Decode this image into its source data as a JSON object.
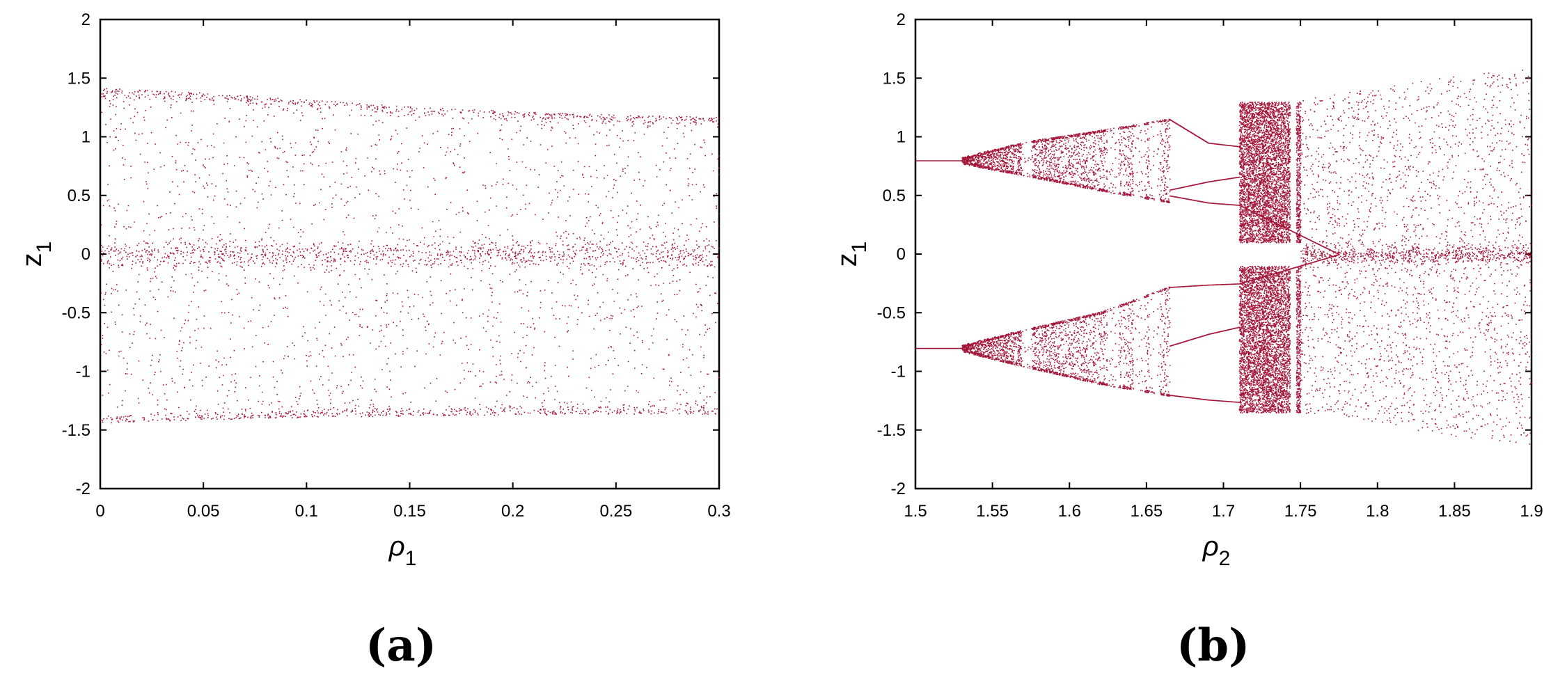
{
  "colors": {
    "points": "#a3163a",
    "axis": "#000000",
    "background": "#ffffff"
  },
  "panels": [
    {
      "label": "(a)"
    },
    {
      "label": "(b)"
    }
  ],
  "chart_data": [
    {
      "type": "scatter",
      "title": "",
      "xlabel": {
        "symbol": "ρ",
        "subscript": "1"
      },
      "ylabel": {
        "symbol": "z",
        "subscript": "1"
      },
      "xlim": [
        0,
        0.3
      ],
      "ylim": [
        -2,
        2
      ],
      "xticks": [
        0,
        0.05,
        0.1,
        0.15,
        0.2,
        0.25,
        0.3
      ],
      "xtick_labels": [
        "0",
        "0.05",
        "0.1",
        "0.15",
        "0.2",
        "0.25",
        "0.3"
      ],
      "yticks": [
        -2,
        -1.5,
        -1,
        -0.5,
        0,
        0.5,
        1,
        1.5,
        2
      ],
      "ytick_labels": [
        "-2",
        "-1.5",
        "-1",
        "-0.5",
        "0",
        "0.5",
        "1",
        "1.5",
        "2"
      ],
      "grid": false,
      "description_of_points": "chaotic band for all ρ1",
      "envelope": {
        "x": [
          0,
          0.05,
          0.1,
          0.15,
          0.2,
          0.25,
          0.3
        ],
        "upper": [
          1.42,
          1.38,
          1.32,
          1.26,
          1.22,
          1.19,
          1.17
        ],
        "lower": [
          -1.44,
          -1.41,
          -1.39,
          -1.38,
          -1.37,
          -1.36,
          -1.36
        ]
      },
      "dense_center": 0
    },
    {
      "type": "scatter",
      "title": "",
      "xlabel": {
        "symbol": "ρ",
        "subscript": "2"
      },
      "ylabel": {
        "symbol": "z",
        "subscript": "1"
      },
      "xlim": [
        1.5,
        1.9
      ],
      "ylim": [
        -2,
        2
      ],
      "xticks": [
        1.5,
        1.55,
        1.6,
        1.65,
        1.7,
        1.75,
        1.8,
        1.85,
        1.9
      ],
      "xtick_labels": [
        "1.5",
        "1.55",
        "1.6",
        "1.65",
        "1.7",
        "1.75",
        "1.8",
        "1.85",
        "1.9"
      ],
      "yticks": [
        -2,
        -1.5,
        -1,
        -0.5,
        0,
        0.5,
        1,
        1.5,
        2
      ],
      "ytick_labels": [
        "-2",
        "-1.5",
        "-1",
        "-0.5",
        "0",
        "0.5",
        "1",
        "1.5",
        "2"
      ],
      "grid": false,
      "branches": [
        {
          "sign": 1,
          "fixed_x": [
            1.5,
            1.53
          ],
          "fixed_y": 0.8,
          "chaos_band_x": [
            1.53,
            1.665
          ],
          "chaos_band_upper": [
            [
              1.53,
              0.82
            ],
            [
              1.57,
              0.95
            ],
            [
              1.62,
              1.05
            ],
            [
              1.665,
              1.15
            ]
          ],
          "chaos_band_lower": [
            [
              1.53,
              0.78
            ],
            [
              1.57,
              0.68
            ],
            [
              1.62,
              0.55
            ],
            [
              1.665,
              0.45
            ]
          ],
          "period2_x": [
            1.665,
            1.71
          ],
          "period2_upper": [
            [
              1.665,
              1.15
            ],
            [
              1.69,
              0.95
            ],
            [
              1.71,
              0.92
            ]
          ],
          "period2_mid": [
            [
              1.665,
              0.55
            ],
            [
              1.69,
              0.62
            ],
            [
              1.71,
              0.66
            ]
          ],
          "period2_lower": [
            [
              1.665,
              0.5
            ],
            [
              1.69,
              0.44
            ],
            [
              1.71,
              0.42
            ]
          ],
          "chaos2_x": [
            1.71,
            1.75
          ],
          "chaos2_upper": 1.3,
          "chaos2_lower": 0.1
        },
        {
          "sign": -1,
          "fixed_x": [
            1.5,
            1.53
          ],
          "fixed_y": -0.8,
          "chaos_band_x": [
            1.53,
            1.665
          ],
          "chaos_band_upper": [
            [
              1.53,
              -0.78
            ],
            [
              1.57,
              -0.65
            ],
            [
              1.62,
              -0.5
            ],
            [
              1.665,
              -0.28
            ]
          ],
          "chaos_band_lower": [
            [
              1.53,
              -0.82
            ],
            [
              1.57,
              -0.95
            ],
            [
              1.62,
              -1.1
            ],
            [
              1.665,
              -1.2
            ]
          ],
          "period2_x": [
            1.665,
            1.71
          ],
          "period2_upper": [
            [
              1.665,
              -0.28
            ],
            [
              1.69,
              -0.26
            ],
            [
              1.71,
              -0.25
            ]
          ],
          "period2_mid": [
            [
              1.665,
              -0.78
            ],
            [
              1.69,
              -0.68
            ],
            [
              1.71,
              -0.62
            ]
          ],
          "period2_lower": [
            [
              1.665,
              -1.2
            ],
            [
              1.69,
              -1.24
            ],
            [
              1.71,
              -1.26
            ]
          ],
          "chaos2_x": [
            1.71,
            1.75
          ],
          "chaos2_upper": -0.1,
          "chaos2_lower": -1.35
        }
      ],
      "final_chaos": {
        "x": [
          1.75,
          1.8,
          1.85,
          1.9
        ],
        "upper": [
          1.32,
          1.42,
          1.52,
          1.6
        ],
        "lower": [
          -1.35,
          -1.45,
          -1.55,
          -1.62
        ]
      }
    }
  ]
}
